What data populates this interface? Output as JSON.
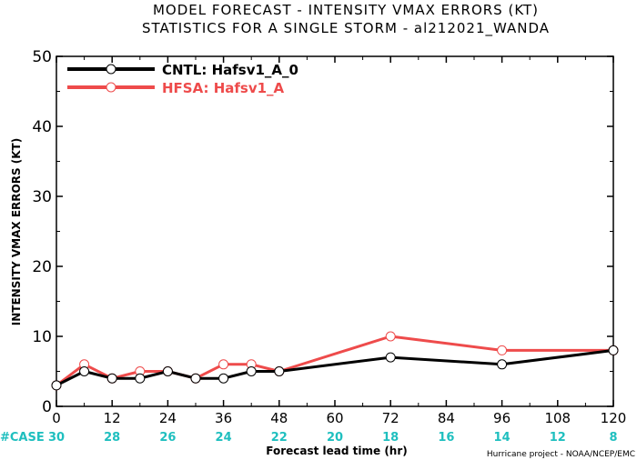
{
  "chart_data": {
    "type": "line",
    "title": [
      "MODEL FORECAST - INTENSITY VMAX ERRORS (KT)",
      "STATISTICS FOR A SINGLE STORM - al212021_WANDA"
    ],
    "xlabel": "Forecast lead time (hr)",
    "ylabel": "INTENSITY VMAX ERRORS (KT)",
    "xlim": [
      0,
      120
    ],
    "ylim": [
      0,
      50
    ],
    "x_ticks": [
      0,
      12,
      24,
      36,
      48,
      60,
      72,
      84,
      96,
      108,
      120
    ],
    "y_ticks": [
      0,
      10,
      20,
      30,
      40,
      50
    ],
    "grid": false,
    "legend_position": "top-left",
    "series": [
      {
        "name": "CNTL: Hafsv1_A_0",
        "color": "#000000",
        "x": [
          0,
          6,
          12,
          18,
          24,
          30,
          36,
          42,
          48,
          72,
          96,
          120
        ],
        "y": [
          3,
          5,
          4,
          4,
          5,
          4,
          4,
          5,
          5,
          7,
          6,
          8
        ]
      },
      {
        "name": "HFSA: Hafsv1_A",
        "color": "#ee4b4b",
        "x": [
          0,
          6,
          12,
          18,
          24,
          30,
          36,
          42,
          48,
          72,
          96,
          120
        ],
        "y": [
          3,
          6,
          4,
          5,
          5,
          4,
          6,
          6,
          5,
          10,
          8,
          8
        ]
      }
    ],
    "case_label": "#CASE",
    "case_label_color": "#1fbfbf",
    "cases": [
      {
        "x": 0,
        "n": "30"
      },
      {
        "x": 12,
        "n": "28"
      },
      {
        "x": 24,
        "n": "26"
      },
      {
        "x": 36,
        "n": "24"
      },
      {
        "x": 48,
        "n": "22"
      },
      {
        "x": 60,
        "n": "20"
      },
      {
        "x": 72,
        "n": "18"
      },
      {
        "x": 84,
        "n": "16"
      },
      {
        "x": 96,
        "n": "14"
      },
      {
        "x": 108,
        "n": "12"
      },
      {
        "x": 120,
        "n": "8"
      }
    ],
    "credit": "Hurricane project - NOAA/NCEP/EMC"
  }
}
